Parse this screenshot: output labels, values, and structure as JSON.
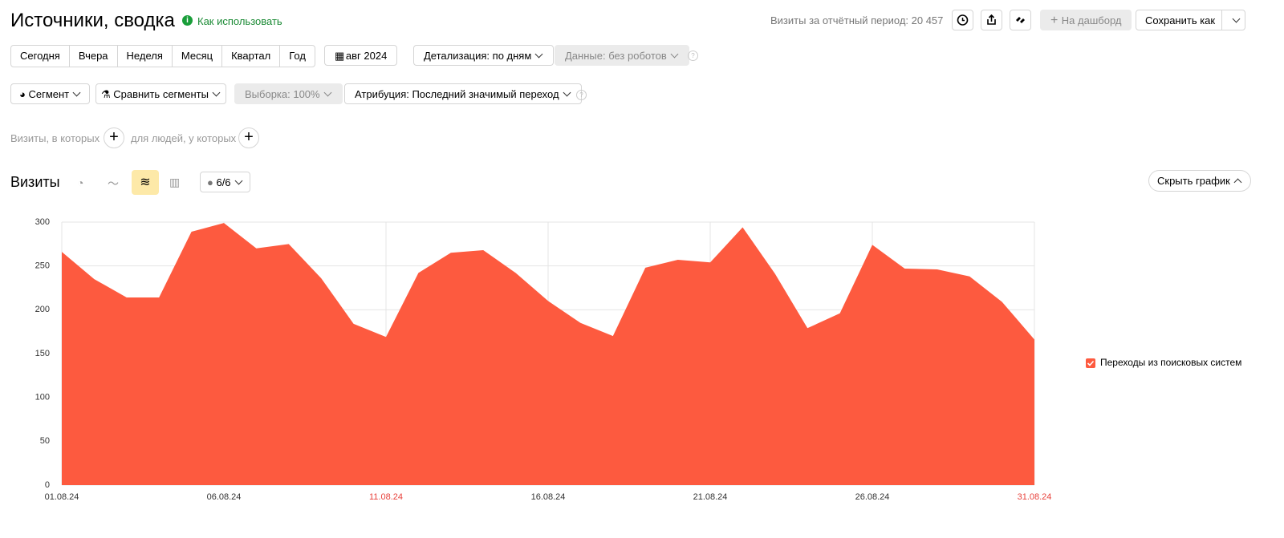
{
  "header": {
    "title": "Источники, сводка",
    "help_link": "Как использовать",
    "visits_total": "Визиты за отчётный период: 20 457",
    "dashboard_button": "На дашборд",
    "save_button": "Сохранить как"
  },
  "period_buttons": [
    "Сегодня",
    "Вчера",
    "Неделя",
    "Месяц",
    "Квартал",
    "Год"
  ],
  "month": "авг 2024",
  "detail": "Детализация: по дням",
  "data_filter": "Данные: без роботов",
  "segment": "Сегмент",
  "compare": "Сравнить сегменты",
  "sample": "Выборка: 100%",
  "attribution": "Атрибуция: Последний значимый переход",
  "filters": {
    "visits": "Визиты, в которых",
    "people": "для людей, у которых"
  },
  "chart_header": {
    "title": "Визиты",
    "count": "6/6",
    "hide": "Скрыть график"
  },
  "chart_data": {
    "type": "area",
    "categories": [
      "01.08.24",
      null,
      null,
      null,
      null,
      "06.08.24",
      null,
      null,
      null,
      null,
      "11.08.24",
      null,
      null,
      null,
      null,
      "16.08.24",
      null,
      null,
      null,
      null,
      "21.08.24",
      null,
      null,
      null,
      null,
      "26.08.24",
      null,
      null,
      null,
      null,
      "31.08.24"
    ],
    "highlight": [
      10,
      30
    ],
    "highlight_color": "#e8413b",
    "series": [
      {
        "name": "Переходы из поисковых систем",
        "color": "#fd5a3f",
        "values": [
          266,
          235,
          214,
          214,
          289,
          299,
          270,
          275,
          236,
          184,
          169,
          242,
          265,
          268,
          242,
          210,
          185,
          170,
          248,
          257,
          254,
          294,
          241,
          179,
          196,
          274,
          247,
          246,
          238,
          209,
          166
        ]
      }
    ],
    "ylim": [
      0,
      300
    ],
    "yticks": [
      0,
      50,
      100,
      150,
      200,
      250,
      300
    ],
    "grid": true,
    "legend": "right"
  }
}
